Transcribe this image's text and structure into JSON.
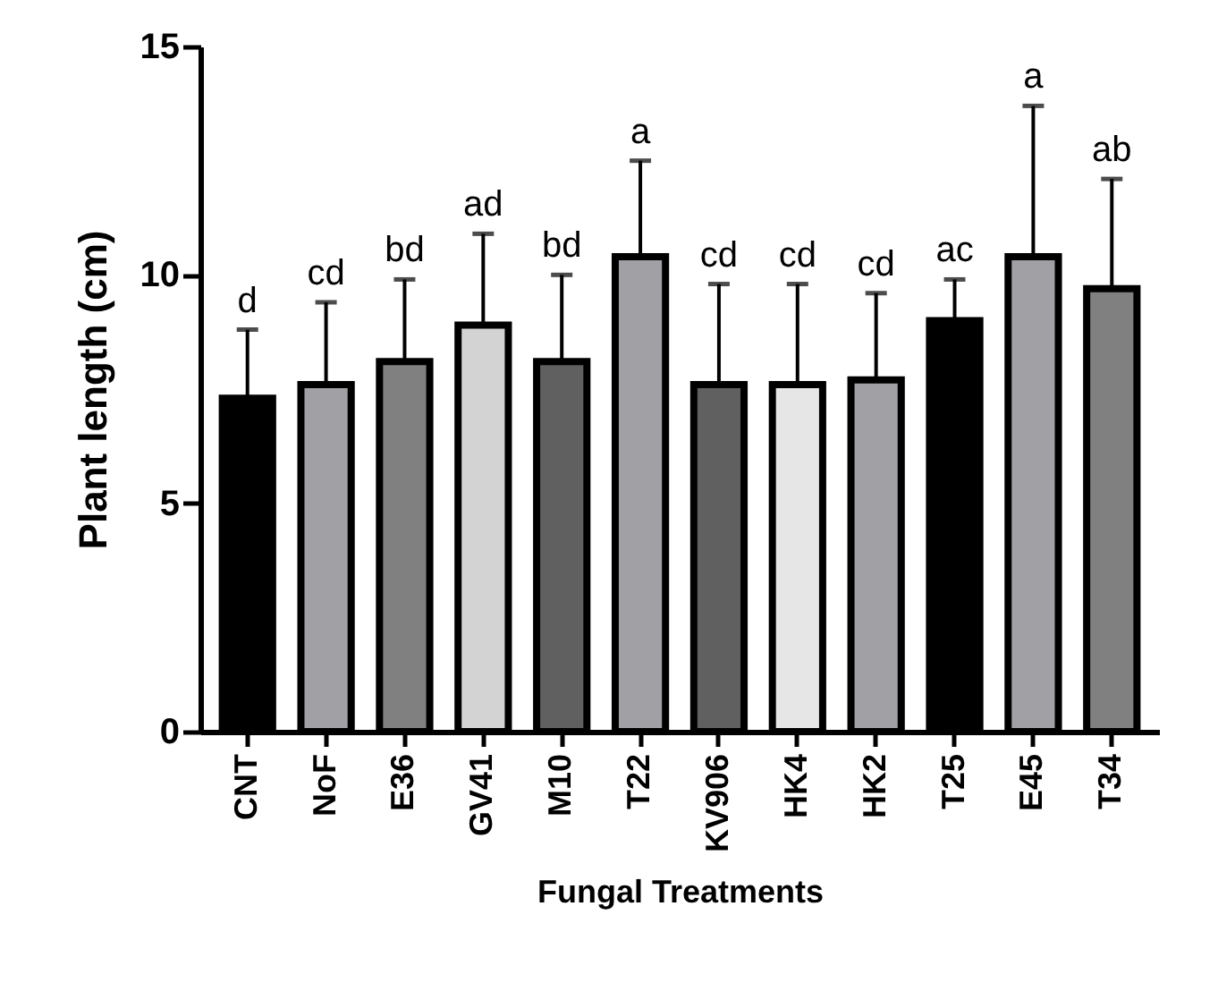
{
  "chart_data": {
    "type": "bar",
    "xlabel": "Fungal Treatments",
    "ylabel": "Plant length (cm)",
    "categories": [
      "CNT",
      "NoF",
      "E36",
      "GV41",
      "M10",
      "T22",
      "KV906",
      "HK4",
      "HK2",
      "T25",
      "E45",
      "T34"
    ],
    "values": [
      7.3,
      7.6,
      8.1,
      8.9,
      8.1,
      10.4,
      7.6,
      7.6,
      7.7,
      9.0,
      10.4,
      9.7
    ],
    "errors": [
      [
        7.3,
        8.8
      ],
      [
        7.6,
        9.4
      ],
      [
        8.1,
        9.9
      ],
      [
        8.9,
        10.9
      ],
      [
        8.1,
        10.0
      ],
      [
        10.4,
        12.5
      ],
      [
        7.6,
        9.8
      ],
      [
        7.6,
        9.8
      ],
      [
        7.7,
        9.6
      ],
      [
        9.0,
        9.9
      ],
      [
        10.4,
        13.7
      ],
      [
        9.7,
        12.1
      ]
    ],
    "colors": [
      "#000000",
      "#a0a0a5",
      "#808080",
      "#d3d3d3",
      "#606060",
      "#a0a0a5",
      "#606060",
      "#e6e6e6",
      "#a0a0a5",
      "#000000",
      "#a0a0a5",
      "#808080"
    ],
    "ylim": [
      0,
      15
    ],
    "yticks": [
      0,
      5,
      10,
      15
    ],
    "grid": false,
    "annotations": [
      {
        "text": "d",
        "x": "CNT",
        "y": 8.8
      },
      {
        "text": "cd",
        "x": "NoF",
        "y": 9.4
      },
      {
        "text": "bd",
        "x": "E36",
        "y": 9.9
      },
      {
        "text": "ad",
        "x": "GV41",
        "y": 10.9
      },
      {
        "text": "bd",
        "x": "M10",
        "y": 10.0
      },
      {
        "text": "a",
        "x": "T22",
        "y": 12.5
      },
      {
        "text": "cd",
        "x": "KV906",
        "y": 9.8
      },
      {
        "text": "cd",
        "x": "HK4",
        "y": 9.8
      },
      {
        "text": "cd",
        "x": "HK2",
        "y": 9.6
      },
      {
        "text": "ac",
        "x": "T25",
        "y": 9.9
      },
      {
        "text": "a",
        "x": "E45",
        "y": 13.7
      },
      {
        "text": "ab",
        "x": "T34",
        "y": 12.1
      }
    ]
  }
}
